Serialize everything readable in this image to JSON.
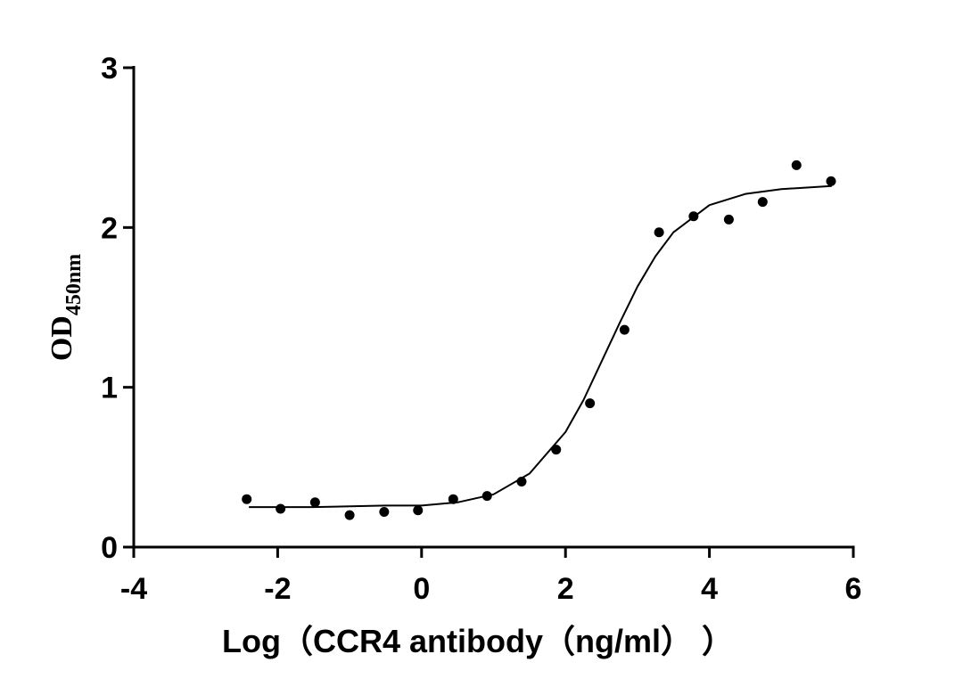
{
  "chart_data": {
    "type": "scatter",
    "xlabel": "Log（CCR4 antibody（ng/ml）  ）",
    "ylabel": "OD",
    "ylabel_sub": "450nm",
    "xlim": [
      -4,
      6
    ],
    "xticks": [
      -4,
      -2,
      0,
      2,
      4,
      6
    ],
    "ylim": [
      0,
      3
    ],
    "yticks": [
      0,
      1,
      2,
      3
    ],
    "grid": false,
    "series": [
      {
        "type": "scatter",
        "color": "#000000",
        "x": [
          -2.43,
          -1.96,
          -1.48,
          -1.0,
          -0.52,
          -0.05,
          0.44,
          0.91,
          1.39,
          1.87,
          2.34,
          2.82,
          3.3,
          3.78,
          4.27,
          4.74,
          5.21,
          5.69
        ],
        "y": [
          0.3,
          0.24,
          0.28,
          0.2,
          0.22,
          0.23,
          0.3,
          0.32,
          0.41,
          0.61,
          0.9,
          1.36,
          1.97,
          2.07,
          2.05,
          2.16,
          2.39,
          2.29
        ]
      },
      {
        "type": "line",
        "color": "#000000",
        "x": [
          -2.4,
          -1.5,
          -0.5,
          0,
          0.5,
          1,
          1.5,
          2,
          2.25,
          2.5,
          2.75,
          3,
          3.25,
          3.5,
          4,
          4.5,
          5,
          5.7
        ],
        "y": [
          0.25,
          0.25,
          0.26,
          0.26,
          0.28,
          0.33,
          0.46,
          0.72,
          0.92,
          1.16,
          1.4,
          1.63,
          1.82,
          1.97,
          2.14,
          2.21,
          2.24,
          2.26
        ]
      }
    ]
  }
}
